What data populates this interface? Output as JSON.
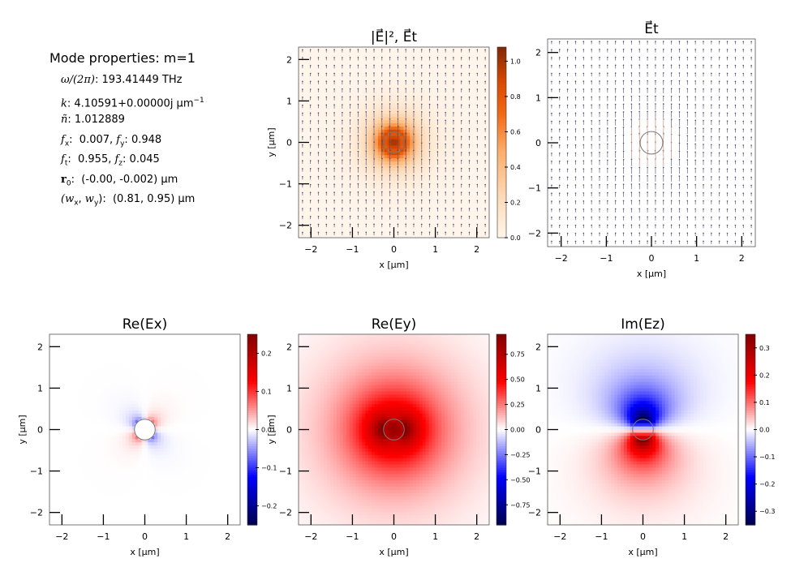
{
  "mode_properties": {
    "title": "Mode properties: m=1",
    "omega": {
      "label": "ω/(2π)",
      "value": "193.41449 THz"
    },
    "k": {
      "label": "k",
      "value": "4.10591+0.00000j μm",
      "unit_exp": "−1"
    },
    "n_tilde": {
      "label": "ñ",
      "value": "1.012889"
    },
    "f_xy": {
      "fx_label": "f",
      "fx_sub": "x",
      "fx_value": "0.007",
      "fy_label": "f",
      "fy_sub": "y",
      "fy_value": "0.948"
    },
    "f_tz": {
      "ft_label": "f",
      "ft_sub": "t",
      "ft_value": "0.955",
      "fz_label": "f",
      "fz_sub": "z",
      "fz_value": "0.045"
    },
    "r0": {
      "label": "r",
      "sub": "0",
      "value": "(-0.00, -0.002) μm"
    },
    "w": {
      "label": "(w",
      "value": "(0.81, 0.95) μm"
    }
  },
  "chart_data": [
    {
      "type": "heatmap",
      "id": "intensity",
      "title": "|E⃗|²,  E⃗t",
      "xlabel": "x [μm]",
      "ylabel": "y [μm]",
      "xlim": [
        -2.3,
        2.3
      ],
      "ylim": [
        -2.3,
        2.3
      ],
      "xticks": [
        -2,
        -1,
        0,
        1,
        2
      ],
      "yticks": [
        -2,
        -1,
        0,
        1,
        2
      ],
      "colormap": "Oranges",
      "overlay": "quiver",
      "colorbar": {
        "min": 0.0,
        "max": 1.08,
        "ticks": [
          "0.0",
          "0.2",
          "0.4",
          "0.6",
          "0.8",
          "1.0"
        ],
        "tick_values": [
          0,
          0.2,
          0.4,
          0.6,
          0.8,
          1.0
        ]
      },
      "core_radius": 0.25
    },
    {
      "type": "heatmap",
      "id": "quiver",
      "title": "E⃗t",
      "xlabel": "x [μm]",
      "ylabel": "",
      "xlim": [
        -2.3,
        2.3
      ],
      "ylim": [
        -2.3,
        2.3
      ],
      "xticks": [
        -2,
        -1,
        0,
        1,
        2
      ],
      "yticks": [
        -2,
        -1,
        0,
        1,
        2
      ],
      "overlay": "quiver",
      "colorbar": null,
      "core_radius": 0.25
    },
    {
      "type": "heatmap",
      "id": "re_ex",
      "title": "Re(Ex)",
      "xlabel": "x [μm]",
      "ylabel": "y [μm]",
      "xlim": [
        -2.3,
        2.3
      ],
      "ylim": [
        -2.3,
        2.3
      ],
      "xticks": [
        -2,
        -1,
        0,
        1,
        2
      ],
      "yticks": [
        -2,
        -1,
        0,
        1,
        2
      ],
      "colormap": "seismic",
      "colorbar": {
        "min": -0.25,
        "max": 0.25,
        "ticks": [
          "0.2",
          "0.1",
          "0.0",
          "−0.1",
          "−0.2"
        ],
        "tick_values": [
          0.2,
          0.1,
          0.0,
          -0.1,
          -0.2
        ]
      },
      "core_radius": 0.25
    },
    {
      "type": "heatmap",
      "id": "re_ey",
      "title": "Re(Ey)",
      "xlabel": "x [μm]",
      "ylabel": "y [μm]",
      "xlim": [
        -2.3,
        2.3
      ],
      "ylim": [
        -2.3,
        2.3
      ],
      "xticks": [
        -2,
        -1,
        0,
        1,
        2
      ],
      "yticks": [
        -2,
        -1,
        0,
        1,
        2
      ],
      "colormap": "seismic",
      "colorbar": {
        "min": -0.95,
        "max": 0.95,
        "ticks": [
          "0.75",
          "0.50",
          "0.25",
          "0.00",
          "−0.25",
          "−0.50",
          "−0.75"
        ],
        "tick_values": [
          0.75,
          0.5,
          0.25,
          0,
          -0.25,
          -0.5,
          -0.75
        ]
      },
      "core_radius": 0.25
    },
    {
      "type": "heatmap",
      "id": "im_ez",
      "title": "Im(Ez)",
      "xlabel": "x [μm]",
      "ylabel": "",
      "xlim": [
        -2.3,
        2.3
      ],
      "ylim": [
        -2.3,
        2.3
      ],
      "xticks": [
        -2,
        -1,
        0,
        1,
        2
      ],
      "yticks": [
        -2,
        -1,
        0,
        1,
        2
      ],
      "colormap": "seismic",
      "colorbar": {
        "min": -0.35,
        "max": 0.35,
        "ticks": [
          "0.3",
          "0.2",
          "0.1",
          "0.0",
          "−0.1",
          "−0.2",
          "−0.3"
        ],
        "tick_values": [
          0.3,
          0.2,
          0.1,
          0,
          -0.1,
          -0.2,
          -0.3
        ]
      },
      "core_radius": 0.25
    }
  ]
}
